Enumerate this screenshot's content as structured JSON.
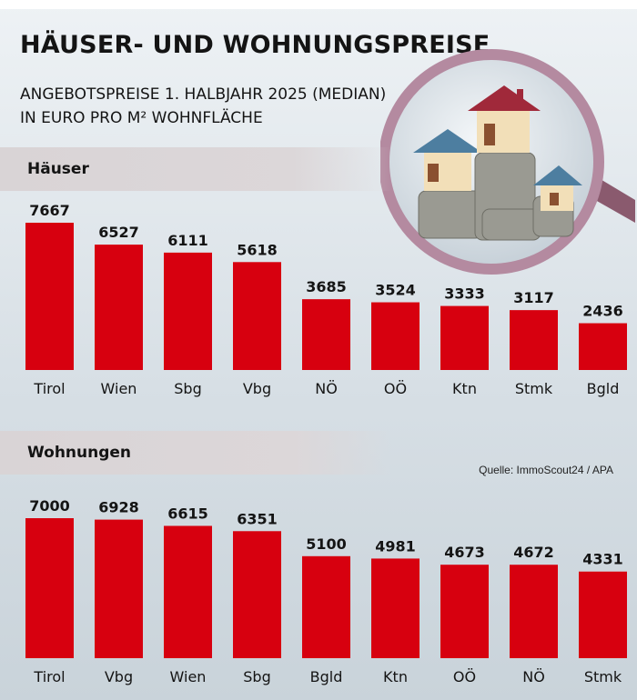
{
  "header": {
    "title": "HÄUSER- UND WOHNUNGSPREISE",
    "subtitle_line1": "ANGEBOTSPREISE 1. HALBJAHR 2025 (MEDIAN)",
    "subtitle_line2": "IN EURO PRO M² WOHNFLÄCHE"
  },
  "source": "Quelle: ImmoScout24 / APA",
  "colors": {
    "bar": "#d7000f",
    "text": "#141414"
  },
  "illustration": "magnifying-glass-over-model-houses-on-coin-stacks",
  "chart_data": [
    {
      "type": "bar",
      "title": "Häuser",
      "categories": [
        "Tirol",
        "Wien",
        "Sbg",
        "Vbg",
        "NÖ",
        "OÖ",
        "Ktn",
        "Stmk",
        "Bgld"
      ],
      "values": [
        7667,
        6527,
        6111,
        5618,
        3685,
        3524,
        3333,
        3117,
        2436
      ],
      "ylim": [
        0,
        7667
      ],
      "grid": false,
      "data_labels": true
    },
    {
      "type": "bar",
      "title": "Wohnungen",
      "categories": [
        "Tirol",
        "Vbg",
        "Wien",
        "Sbg",
        "Bgld",
        "Ktn",
        "OÖ",
        "NÖ",
        "Stmk"
      ],
      "values": [
        7000,
        6928,
        6615,
        6351,
        5100,
        4981,
        4673,
        4672,
        4331
      ],
      "ylim": [
        0,
        7000
      ],
      "grid": false,
      "data_labels": true
    }
  ]
}
